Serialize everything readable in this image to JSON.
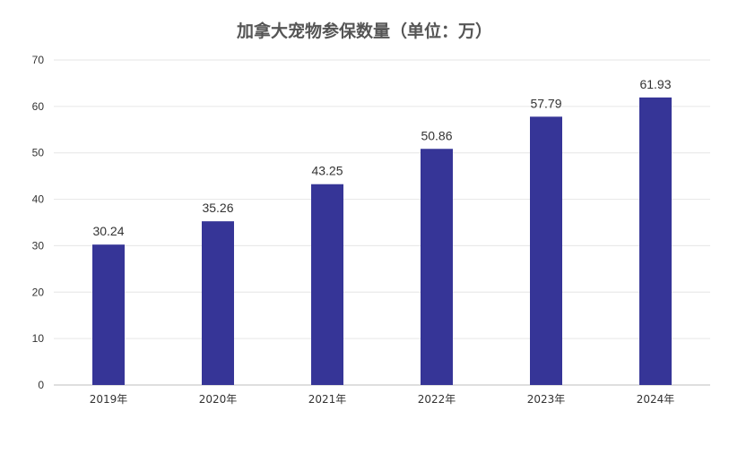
{
  "chart_data": {
    "type": "bar",
    "title": "加拿大宠物参保数量（单位：万）",
    "categories": [
      "2019年",
      "2020年",
      "2021年",
      "2022年",
      "2023年",
      "2024年"
    ],
    "values": [
      30.24,
      35.26,
      43.25,
      50.86,
      57.79,
      61.93
    ],
    "data_labels": [
      "30.24",
      "35.26",
      "43.25",
      "50.86",
      "57.79",
      "61.93"
    ],
    "ylim": [
      0,
      70
    ],
    "yticks": [
      0,
      10,
      20,
      30,
      40,
      50,
      60,
      70
    ],
    "grid": true,
    "bar_color": "#363597"
  }
}
